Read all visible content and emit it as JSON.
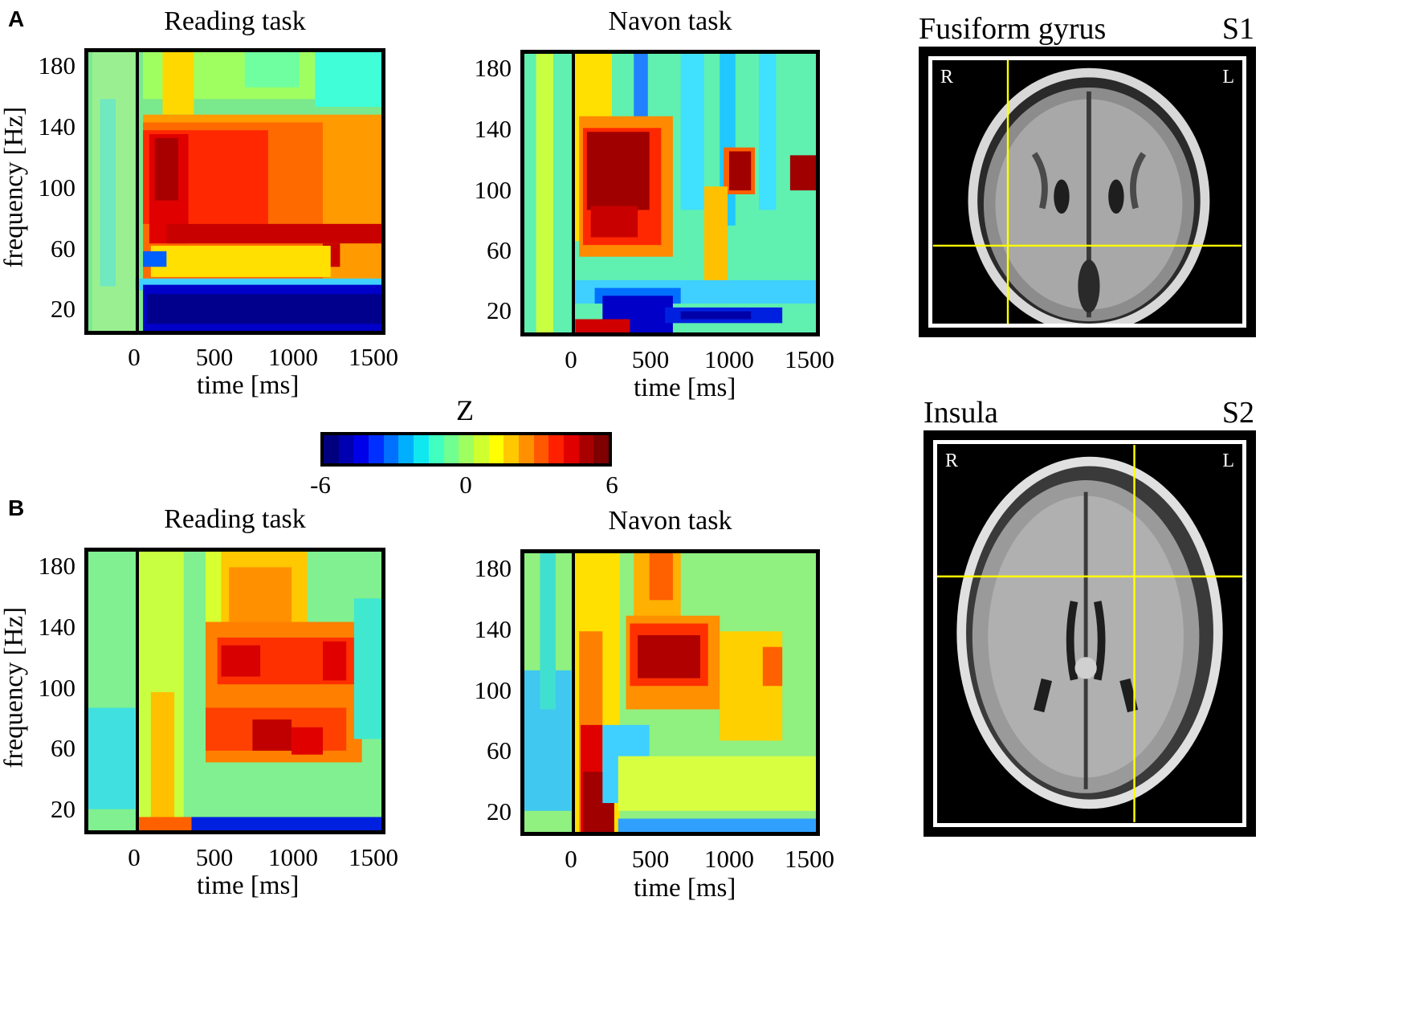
{
  "panels": {
    "A": {
      "letter": "A"
    },
    "B": {
      "letter": "B"
    }
  },
  "plot_titles": {
    "a_reading": "Reading task",
    "a_navon": "Navon task",
    "b_reading": "Reading task",
    "b_navon": "Navon task"
  },
  "axes": {
    "xlabel": "time [ms]",
    "ylabel": "frequency [Hz]",
    "xticks": [
      "0",
      "500",
      "1000",
      "1500"
    ],
    "yticks": [
      "180",
      "140",
      "100",
      "60",
      "20"
    ]
  },
  "colorbar": {
    "label": "Z",
    "min_label": "-6",
    "mid_label": "0",
    "max_label": "6",
    "colors": [
      "#00007f",
      "#0000b0",
      "#0000e8",
      "#0030ff",
      "#0070ff",
      "#00b0ff",
      "#10e8f0",
      "#40ffc0",
      "#70ff90",
      "#a0ff60",
      "#d0ff30",
      "#ffff00",
      "#ffc800",
      "#ff9000",
      "#ff5800",
      "#ff2000",
      "#e00000",
      "#a80000",
      "#7f0000"
    ]
  },
  "mri": {
    "s1": {
      "title": "Fusiform gyrus",
      "subject": "S1",
      "left": "R",
      "right": "L"
    },
    "s2": {
      "title": "Insula",
      "subject": "S2",
      "left": "R",
      "right": "L"
    }
  },
  "chart_data": [
    {
      "type": "heatmap",
      "panel": "A",
      "title": "Reading task",
      "xlabel": "time [ms]",
      "ylabel": "frequency [Hz]",
      "xlim": [
        -300,
        1550
      ],
      "ylim": [
        5,
        190
      ],
      "xticks": [
        0,
        500,
        1000,
        1500
      ],
      "yticks": [
        20,
        60,
        100,
        140,
        180
      ],
      "zlim": [
        -6,
        6
      ],
      "baseline_Z": 0.5,
      "features": [
        {
          "t_range": [
            50,
            1550
          ],
          "f_range": [
            8,
            28
          ],
          "z": -6
        },
        {
          "t_range": [
            50,
            1200
          ],
          "f_range": [
            30,
            45
          ],
          "z": -2
        },
        {
          "t_range": [
            100,
            900
          ],
          "f_range": [
            60,
            135
          ],
          "z": 5
        },
        {
          "t_range": [
            100,
            400
          ],
          "f_range": [
            95,
            140
          ],
          "z": 6
        },
        {
          "t_range": [
            300,
            1550
          ],
          "f_range": [
            60,
            75
          ],
          "z": 5
        },
        {
          "t_range": [
            400,
            1550
          ],
          "f_range": [
            75,
            130
          ],
          "z": 3
        }
      ]
    },
    {
      "type": "heatmap",
      "panel": "A",
      "title": "Navon task",
      "xlabel": "time [ms]",
      "ylabel": "frequency [Hz]",
      "xlim": [
        -300,
        1550
      ],
      "ylim": [
        5,
        190
      ],
      "xticks": [
        0,
        500,
        1000,
        1500
      ],
      "yticks": [
        20,
        60,
        100,
        140,
        180
      ],
      "zlim": [
        -6,
        6
      ],
      "baseline_Z": 0,
      "features": [
        {
          "t_range": [
            100,
            550
          ],
          "f_range": [
            70,
            125
          ],
          "z": 6
        },
        {
          "t_range": [
            1050,
            1200
          ],
          "f_range": [
            95,
            115
          ],
          "z": 6
        },
        {
          "t_range": [
            1420,
            1550
          ],
          "f_range": [
            98,
            112
          ],
          "z": 6
        },
        {
          "t_range": [
            100,
            800
          ],
          "f_range": [
            10,
            25
          ],
          "z": -6
        },
        {
          "t_range": [
            800,
            1300
          ],
          "f_range": [
            10,
            20
          ],
          "z": -5
        },
        {
          "t_range": [
            50,
            300
          ],
          "f_range": [
            5,
            10
          ],
          "z": 6
        }
      ]
    },
    {
      "type": "heatmap",
      "panel": "B",
      "title": "Reading task",
      "xlabel": "time [ms]",
      "ylabel": "frequency [Hz]",
      "xlim": [
        -300,
        1550
      ],
      "ylim": [
        5,
        190
      ],
      "xticks": [
        0,
        500,
        1000,
        1500
      ],
      "yticks": [
        20,
        60,
        100,
        140,
        180
      ],
      "zlim": [
        -6,
        6
      ],
      "baseline_Z": 1,
      "features": [
        {
          "t_range": [
            450,
            1350
          ],
          "f_range": [
            55,
            140
          ],
          "z": 4
        },
        {
          "t_range": [
            500,
            800
          ],
          "f_range": [
            95,
            130
          ],
          "z": 5
        },
        {
          "t_range": [
            700,
            1100
          ],
          "f_range": [
            55,
            75
          ],
          "z": 5
        },
        {
          "t_range": [
            300,
            1550
          ],
          "f_range": [
            5,
            10
          ],
          "z": -6
        },
        {
          "t_range": [
            100,
            300
          ],
          "f_range": [
            5,
            12
          ],
          "z": 5
        }
      ]
    },
    {
      "type": "heatmap",
      "panel": "B",
      "title": "Navon task",
      "xlabel": "time [ms]",
      "ylabel": "frequency [Hz]",
      "xlim": [
        -300,
        1550
      ],
      "ylim": [
        5,
        190
      ],
      "xticks": [
        0,
        500,
        1000,
        1500
      ],
      "yticks": [
        20,
        60,
        100,
        140,
        180
      ],
      "zlim": [
        -6,
        6
      ],
      "baseline_Z": 1,
      "features": [
        {
          "t_range": [
            350,
            800
          ],
          "f_range": [
            95,
            135
          ],
          "z": 5
        },
        {
          "t_range": [
            50,
            300
          ],
          "f_range": [
            5,
            60
          ],
          "z": 6
        },
        {
          "t_range": [
            400,
            1350
          ],
          "f_range": [
            60,
            190
          ],
          "z": 3
        }
      ]
    }
  ]
}
